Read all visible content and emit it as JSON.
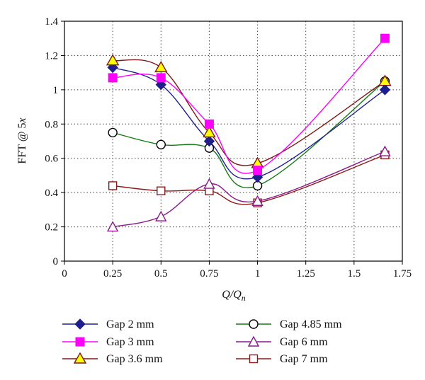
{
  "chart_data": {
    "type": "line",
    "title": "",
    "xlabel": "Q/Q",
    "xlabel_sub": "n",
    "ylabel_prefix": "FFT @ 5",
    "ylabel_var": "x",
    "xlim": [
      0,
      1.75
    ],
    "ylim": [
      0,
      1.4
    ],
    "xticks": [
      0,
      0.25,
      0.5,
      0.75,
      1,
      1.25,
      1.5,
      1.75
    ],
    "xtick_labels": [
      "0",
      "0.25",
      "0.5",
      "0.75",
      "1",
      "1.25",
      "1.5",
      "1.75"
    ],
    "yticks": [
      0,
      0.2,
      0.4,
      0.6,
      0.8,
      1,
      1.2,
      1.4
    ],
    "ytick_labels": [
      "0",
      "0.2",
      "0.4",
      "0.6",
      "0.8",
      "1",
      "1.2",
      "1.4"
    ],
    "grid": true,
    "legend_position": "bottom",
    "x": [
      0.25,
      0.5,
      0.75,
      1,
      1.66
    ],
    "series": [
      {
        "name": "Gap 2 mm",
        "values": [
          1.13,
          1.03,
          0.7,
          0.49,
          1.0
        ],
        "color": "#1f1f8c",
        "marker": "diamond"
      },
      {
        "name": "Gap 3 mm",
        "values": [
          1.07,
          1.07,
          0.8,
          0.53,
          1.3
        ],
        "color": "#ff00ff",
        "marker": "square"
      },
      {
        "name": "Gap 3.6 mm",
        "values": [
          1.17,
          1.13,
          0.75,
          0.57,
          1.05
        ],
        "color": "#7b1a1a",
        "marker": "triangle-filled",
        "marker_fill": "#ffff00"
      },
      {
        "name": "Gap 4.85 mm",
        "values": [
          0.75,
          0.68,
          0.66,
          0.44,
          1.05
        ],
        "color": "#137a13",
        "marker": "circle"
      },
      {
        "name": "Gap 6 mm",
        "values": [
          0.2,
          0.26,
          0.45,
          0.35,
          0.64
        ],
        "color": "#8b1a8b",
        "marker": "triangle"
      },
      {
        "name": "Gap 7 mm",
        "values": [
          0.44,
          0.41,
          0.41,
          0.34,
          0.62
        ],
        "color": "#8b1a1a",
        "marker": "square-open"
      }
    ]
  }
}
